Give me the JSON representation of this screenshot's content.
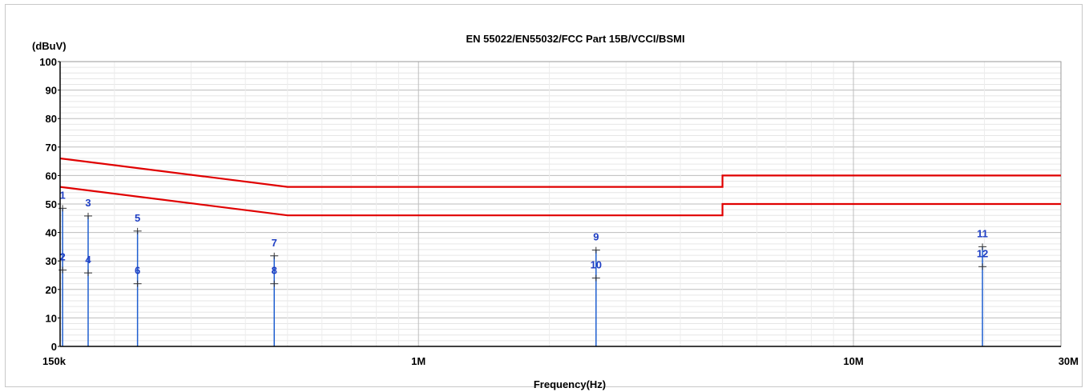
{
  "chart_data": {
    "type": "line",
    "title": "EN 55022/EN55032/FCC Part 15B/VCCI/BSMI",
    "ylabel": "(dBuV)",
    "xlabel": "Frequency(Hz)",
    "x_scale": "log",
    "xlim": [
      150000,
      30000000
    ],
    "ylim": [
      0,
      100
    ],
    "y_ticks": [
      0,
      10,
      20,
      30,
      40,
      50,
      60,
      70,
      80,
      90,
      100
    ],
    "x_ticks": [
      {
        "value": 150000,
        "label": "150k"
      },
      {
        "value": 1000000,
        "label": "1M"
      },
      {
        "value": 10000000,
        "label": "10M"
      },
      {
        "value": 30000000,
        "label": "30M"
      }
    ],
    "grid": true,
    "limit_lines": [
      {
        "points": [
          [
            150000,
            66
          ],
          [
            500000,
            56
          ],
          [
            5000000,
            56
          ],
          [
            5000000,
            60
          ],
          [
            30000000,
            60
          ]
        ],
        "color": "#e00000"
      },
      {
        "points": [
          [
            150000,
            56
          ],
          [
            500000,
            46
          ],
          [
            5000000,
            46
          ],
          [
            5000000,
            50
          ],
          [
            30000000,
            50
          ]
        ],
        "color": "#e00000"
      }
    ],
    "markers": [
      {
        "label": "1",
        "freq": 152000,
        "level": 48.5
      },
      {
        "label": "2",
        "freq": 152000,
        "level": 26.8
      },
      {
        "label": "3",
        "freq": 174000,
        "level": 45.8
      },
      {
        "label": "4",
        "freq": 174000,
        "level": 25.8
      },
      {
        "label": "5",
        "freq": 226000,
        "level": 40.5
      },
      {
        "label": "6",
        "freq": 226000,
        "level": 22.0
      },
      {
        "label": "7",
        "freq": 466000,
        "level": 31.8
      },
      {
        "label": "8",
        "freq": 466000,
        "level": 22.0
      },
      {
        "label": "9",
        "freq": 2560000,
        "level": 33.8
      },
      {
        "label": "10",
        "freq": 2560000,
        "level": 24.0
      },
      {
        "label": "11",
        "freq": 19800000,
        "level": 35.0
      },
      {
        "label": "12",
        "freq": 19800000,
        "level": 28.0
      }
    ],
    "colors": {
      "limit": "#e00000",
      "marker": "#1f5fd0",
      "marker_text": "#1f3fc4",
      "grid": "#c4c4c4"
    }
  }
}
